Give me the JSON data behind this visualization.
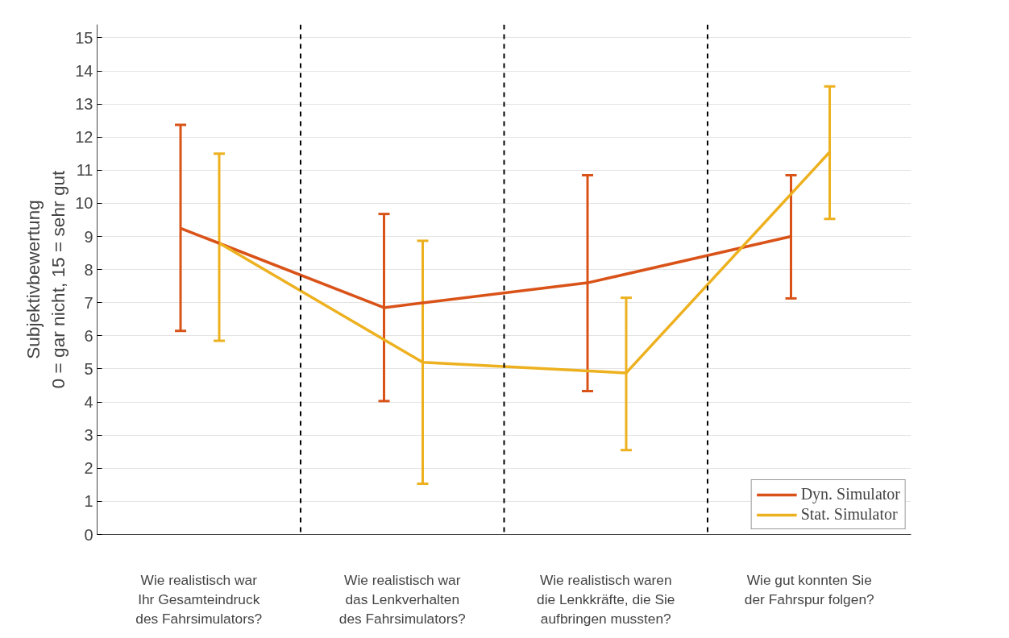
{
  "chart_data": {
    "type": "line",
    "ylabel": "Subjektivbewertung\n0 = gar nicht, 15 = sehr gut",
    "categories": [
      "Wie realistisch war\nIhr Gesamteindruck\ndes Fahrsimulators?",
      "Wie realistisch war\ndas Lenkverhalten\ndes Fahrsimulators?",
      "Wie realistisch waren\ndie Lenkkräfte, die Sie\naufbringen mussten?",
      "Wie gut konnten Sie\nder Fahrspur folgen?"
    ],
    "series": [
      {
        "name": "Dyn. Simulator",
        "color": "#d95319",
        "values": [
          9.25,
          6.85,
          7.6,
          9.0
        ],
        "errors": [
          [
            6.15,
            12.37
          ],
          [
            4.03,
            9.68
          ],
          [
            4.33,
            10.85
          ],
          [
            7.13,
            10.85
          ]
        ]
      },
      {
        "name": "Stat. Simulator",
        "color": "#edb120",
        "values": [
          8.8,
          5.2,
          4.88,
          11.55
        ],
        "errors": [
          [
            5.85,
            11.5
          ],
          [
            1.53,
            8.87
          ],
          [
            2.55,
            7.15
          ],
          [
            9.53,
            13.53
          ]
        ]
      }
    ],
    "ylim": [
      0,
      15.4
    ],
    "yticks": [
      0,
      1,
      2,
      3,
      4,
      5,
      6,
      7,
      8,
      9,
      10,
      11,
      12,
      13,
      14,
      15
    ],
    "grid": "y",
    "legend": "bottom right",
    "marker": "none",
    "line_style": "solid"
  }
}
